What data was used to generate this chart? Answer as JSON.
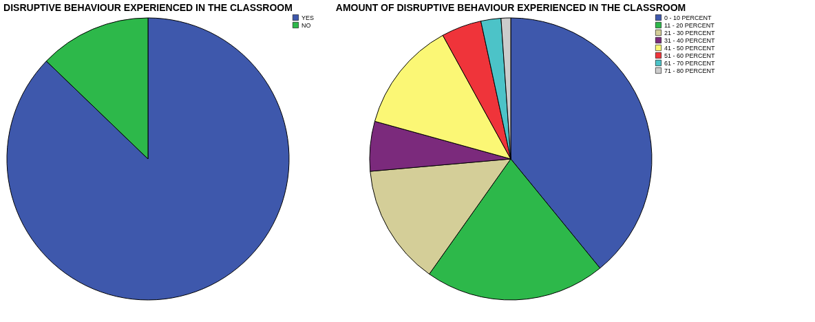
{
  "chart_data": [
    {
      "type": "pie",
      "title": "DISRUPTIVE BEHAVIOUR EXPERIENCED IN THE CLASSROOM",
      "categories": [
        "YES",
        "NO"
      ],
      "values": [
        87.2,
        12.8
      ],
      "colors": [
        "#3e58ac",
        "#2db84a"
      ],
      "legend": "top right"
    },
    {
      "type": "pie",
      "title": "AMOUNT OF DISRUPTIVE BEHAVIOUR EXPERIENCED IN THE CLASSROOM",
      "categories": [
        "0 - 10 PERCENT",
        "11 - 20 PERCENT",
        "21 - 30 PERCENT",
        "31 - 40 PERCENT",
        "41 - 50 PERCENT",
        "51 - 60 PERCENT",
        "61 - 70 PERCENT",
        "71 - 80 PERCENT"
      ],
      "values": [
        39.1,
        20.7,
        13.8,
        5.7,
        12.7,
        4.6,
        2.3,
        1.1
      ],
      "colors": [
        "#3e58ac",
        "#2db84a",
        "#d4ce98",
        "#7b2a7c",
        "#fbf775",
        "#ef343a",
        "#4cc3c8",
        "#cccccc"
      ],
      "legend": "top right"
    }
  ]
}
